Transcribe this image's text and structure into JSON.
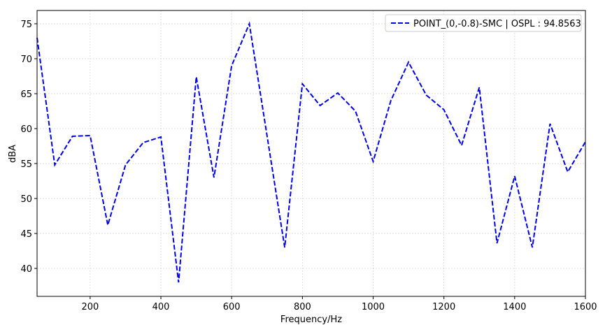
{
  "chart_data": {
    "type": "line",
    "x_label": "Frequency/Hz",
    "y_label": "dBA",
    "x": [
      50,
      100,
      150,
      200,
      250,
      300,
      350,
      400,
      450,
      500,
      550,
      600,
      650,
      700,
      750,
      800,
      850,
      900,
      950,
      1000,
      1050,
      1100,
      1150,
      1200,
      1250,
      1300,
      1350,
      1400,
      1450,
      1500,
      1550,
      1600
    ],
    "series": [
      {
        "name": "POINT_(0,-0.8)-SMC | OSPL : 94.8563",
        "color": "#0000ee",
        "values": [
          73,
          54.8,
          58.9,
          59,
          46.2,
          54.8,
          58,
          58.8,
          38,
          67.4,
          53,
          69,
          75,
          59,
          43,
          66.4,
          63.3,
          65.1,
          62.5,
          55.3,
          64,
          69.5,
          64.8,
          62.7,
          57.6,
          65.9,
          43.6,
          53.2,
          43,
          60.7,
          53.8,
          58.1
        ]
      }
    ],
    "xlim": [
      50,
      1600
    ],
    "ylim": [
      36,
      76.9
    ],
    "xticks": [
      200,
      400,
      600,
      800,
      1000,
      1200,
      1400,
      1600
    ],
    "yticks": [
      40,
      45,
      50,
      55,
      60,
      65,
      70,
      75
    ],
    "grid": true,
    "legend": "upper right",
    "line_style": "dashed"
  }
}
